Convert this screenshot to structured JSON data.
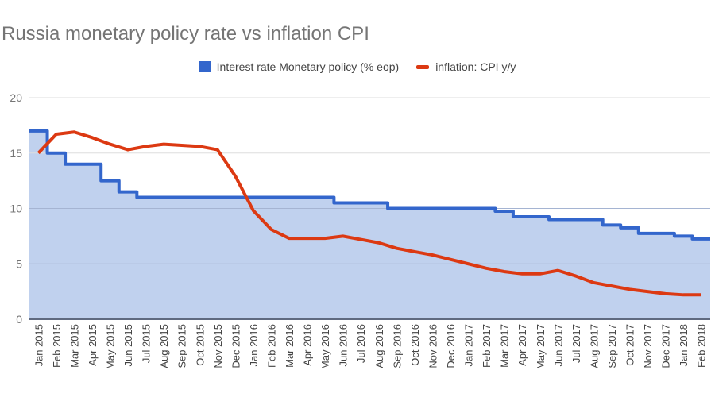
{
  "chart_data": {
    "type": "area",
    "title": "Russia monetary policy rate vs inflation CPI",
    "legend_position": "top",
    "grid": true,
    "ylim": [
      0,
      20
    ],
    "yticks": [
      0,
      5,
      10,
      15,
      20
    ],
    "categories": [
      "Jan 2015",
      "Feb 2015",
      "Mar 2015",
      "Apr 2015",
      "May 2015",
      "Jun 2015",
      "Jul 2015",
      "Aug 2015",
      "Sep 2015",
      "Oct 2015",
      "Nov 2015",
      "Dec 2015",
      "Jan 2016",
      "Feb 2016",
      "Mar 2016",
      "Apr 2016",
      "May 2016",
      "Jun 2016",
      "Jul 2016",
      "Aug 2016",
      "Sep 2016",
      "Oct 2016",
      "Nov 2016",
      "Dec 2016",
      "Jan 2017",
      "Feb 2017",
      "Mar 2017",
      "Apr 2017",
      "May 2017",
      "Jun 2017",
      "Jul 2017",
      "Aug 2017",
      "Sep 2017",
      "Oct 2017",
      "Nov 2017",
      "Dec 2017",
      "Jan 2018",
      "Feb 2018"
    ],
    "series": [
      {
        "name": "Interest rate Monetary policy (% eop)",
        "type": "stepped-area",
        "color": "#3366cc",
        "values": [
          17,
          15,
          14,
          14,
          12.5,
          11.5,
          11,
          11,
          11,
          11,
          11,
          11,
          11,
          11,
          11,
          11,
          11,
          10.5,
          10.5,
          10.5,
          10,
          10,
          10,
          10,
          10,
          10,
          9.75,
          9.25,
          9.25,
          9,
          9,
          9,
          8.5,
          8.25,
          7.75,
          7.75,
          7.5,
          7.25
        ]
      },
      {
        "name": "inflation: CPI y/y",
        "type": "line",
        "color": "#dc3912",
        "values": [
          15.0,
          16.7,
          16.9,
          16.4,
          15.8,
          15.3,
          15.6,
          15.8,
          15.7,
          15.6,
          15.3,
          12.9,
          9.8,
          8.1,
          7.3,
          7.3,
          7.3,
          7.5,
          7.2,
          6.9,
          6.4,
          6.1,
          5.8,
          5.4,
          5.0,
          4.6,
          4.3,
          4.1,
          4.1,
          4.4,
          3.9,
          3.3,
          3.0,
          2.7,
          2.5,
          2.3,
          2.2,
          2.2
        ]
      }
    ]
  }
}
